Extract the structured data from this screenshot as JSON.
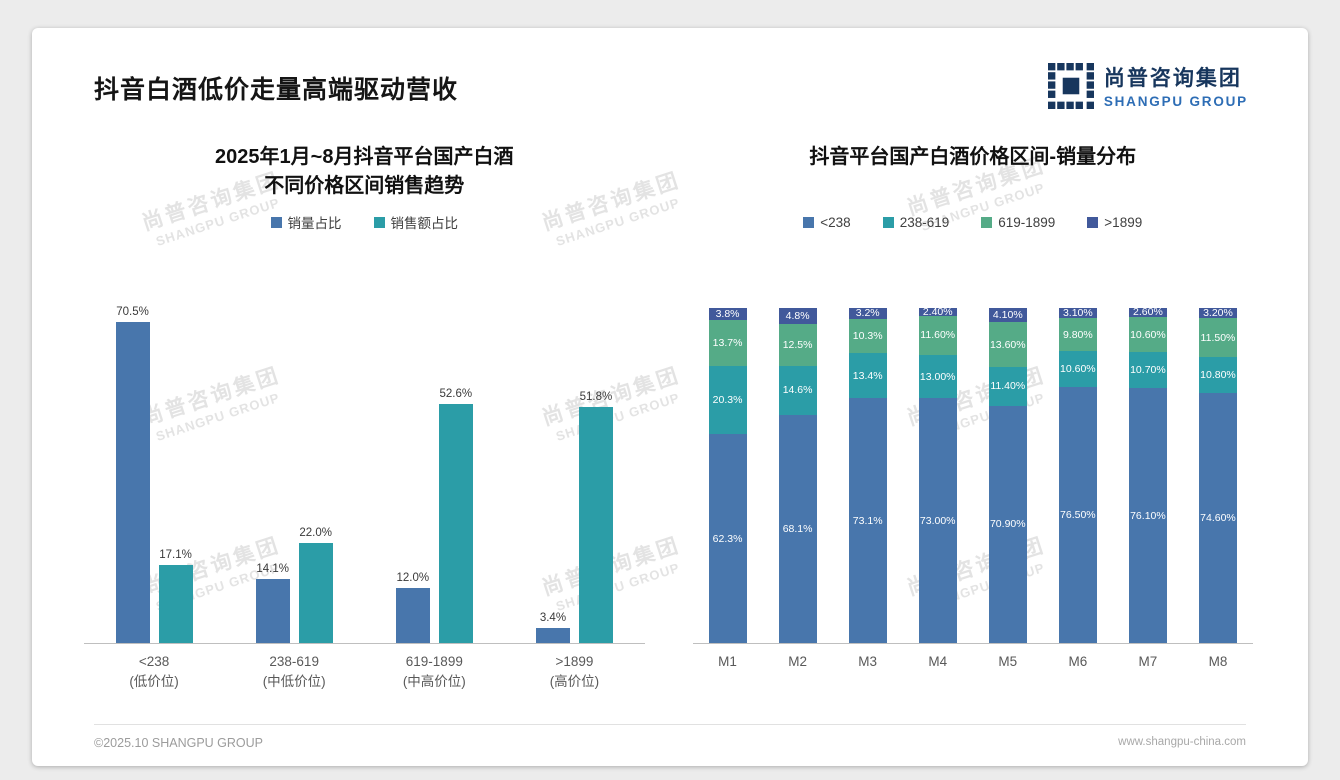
{
  "page": {
    "header_title": "抖音白酒低价走量高端驱动营收",
    "logo": {
      "cn": "尚普咨询集团",
      "en": "SHANGPU GROUP"
    },
    "watermark_cn": "尚普咨询集团",
    "watermark_en": "SHANGPU GROUP",
    "footer_left": "©2025.10 SHANGPU GROUP",
    "footer_right": "www.shangpu-china.com"
  },
  "colors": {
    "blue": "#4876AC",
    "teal": "#2B9DA7",
    "green": "#55AB87",
    "navy": "#41599B",
    "brand_dark_blue": "#17365D",
    "brand_blue": "#2D6DB5",
    "axis_line": "#BFBFBF",
    "label_dark": "#3a3a3a",
    "label_light": "#ffffff"
  },
  "chart_data": [
    {
      "type": "bar",
      "title_lines": [
        "2025年1月~8月抖音平台国产白酒",
        "不同价格区间销售趋势"
      ],
      "categories": [
        {
          "line1": "<238",
          "line2": "(低价位)"
        },
        {
          "line1": "238-619",
          "line2": "(中低价位)"
        },
        {
          "line1": "619-1899",
          "line2": "(中高价位)"
        },
        {
          "line1": ">1899",
          "line2": "(高价位)"
        }
      ],
      "series": [
        {
          "name": "销量占比",
          "color_key": "blue",
          "values": [
            70.5,
            14.1,
            12.0,
            3.4
          ],
          "labels": [
            "70.5%",
            "14.1%",
            "12.0%",
            "3.4%"
          ]
        },
        {
          "name": "销售额占比",
          "color_key": "teal",
          "values": [
            17.1,
            22.0,
            52.6,
            51.8
          ],
          "labels": [
            "17.1%",
            "22.0%",
            "52.6%",
            "51.8%"
          ]
        }
      ],
      "ylim": [
        0,
        75
      ],
      "grid": false,
      "legend_position": "top"
    },
    {
      "type": "stacked-bar",
      "title": "抖音平台国产白酒价格区间-销量分布",
      "categories": [
        "M1",
        "M2",
        "M3",
        "M4",
        "M5",
        "M6",
        "M7",
        "M8"
      ],
      "series": [
        {
          "name": "<238",
          "color_key": "blue",
          "values": [
            62.3,
            68.1,
            73.1,
            73.0,
            70.9,
            76.5,
            76.1,
            74.6
          ],
          "labels": [
            "62.3%",
            "68.1%",
            "73.1%",
            "73.00%",
            "70.90%",
            "76.50%",
            "76.10%",
            "74.60%"
          ]
        },
        {
          "name": "238-619",
          "color_key": "teal",
          "values": [
            20.3,
            14.6,
            13.4,
            13.0,
            11.4,
            10.6,
            10.7,
            10.8
          ],
          "labels": [
            "20.3%",
            "14.6%",
            "13.4%",
            "13.00%",
            "11.40%",
            "10.60%",
            "10.70%",
            "10.80%"
          ]
        },
        {
          "name": "619-1899",
          "color_key": "green",
          "values": [
            13.7,
            12.5,
            10.3,
            11.6,
            13.6,
            9.8,
            10.6,
            11.5
          ],
          "labels": [
            "13.7%",
            "12.5%",
            "10.3%",
            "11.60%",
            "13.60%",
            "9.80%",
            "10.60%",
            "11.50%"
          ]
        },
        {
          "name": ">1899",
          "color_key": "navy",
          "values": [
            3.8,
            4.8,
            3.2,
            2.4,
            4.1,
            3.1,
            2.6,
            3.2
          ],
          "labels": [
            "3.8%",
            "4.8%",
            "3.2%",
            "2.40%",
            "4.10%",
            "3.10%",
            "2.60%",
            "3.20%"
          ]
        }
      ],
      "ylim": [
        0,
        100
      ],
      "grid": false,
      "legend_position": "top"
    }
  ]
}
